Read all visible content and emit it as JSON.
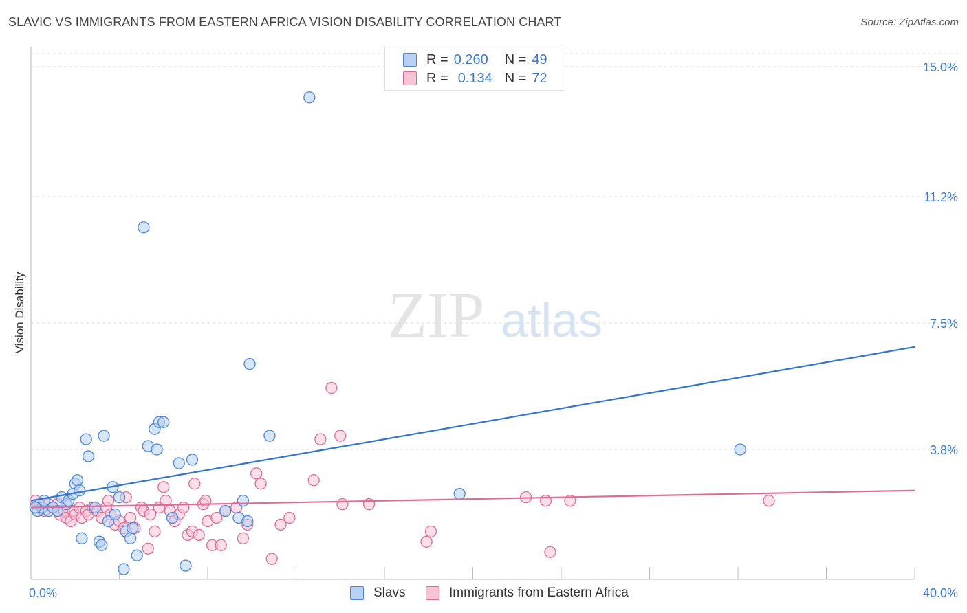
{
  "title": "SLAVIC VS IMMIGRANTS FROM EASTERN AFRICA VISION DISABILITY CORRELATION CHART",
  "source": "Source: ZipAtlas.com",
  "watermark": {
    "zip": "ZIP",
    "atlas": "atlas"
  },
  "legend": {
    "r_label": "R =",
    "n_label": "N =",
    "slavs": {
      "r": "0.260",
      "n": "49"
    },
    "eastern_africa": {
      "r": "0.134",
      "n": "72"
    }
  },
  "colors": {
    "slavs": "#4a86d8",
    "slavs_fill": "#b7d0f4",
    "eastern_africa": "#e06a96",
    "eastern_africa_fill": "#f7c4d6"
  },
  "chart_data": {
    "type": "scatter",
    "title": "SLAVIC VS IMMIGRANTS FROM EASTERN AFRICA VISION DISABILITY CORRELATION CHART",
    "ylabel": "Vision Disability",
    "xlabel": "",
    "xlim": [
      0,
      40
    ],
    "ylim": [
      0,
      15.5
    ],
    "x_tick_labels": [
      "0.0%",
      "40.0%"
    ],
    "y_ticks": [
      3.8,
      7.5,
      11.2,
      15.0
    ],
    "y_tick_labels": [
      "3.8%",
      "7.5%",
      "11.2%",
      "15.0%"
    ],
    "grid": true,
    "legend_position": "top-center",
    "series": [
      {
        "name": "Slavs",
        "trend": [
          [
            0,
            2.3
          ],
          [
            40,
            6.8
          ]
        ],
        "points": [
          [
            0.3,
            2.0
          ],
          [
            0.5,
            2.1
          ],
          [
            0.6,
            2.3
          ],
          [
            0.8,
            2.0
          ],
          [
            1.0,
            2.1
          ],
          [
            1.2,
            2.0
          ],
          [
            1.4,
            2.4
          ],
          [
            1.6,
            2.2
          ],
          [
            1.7,
            2.3
          ],
          [
            1.9,
            2.5
          ],
          [
            2.0,
            2.8
          ],
          [
            2.1,
            2.9
          ],
          [
            2.2,
            2.6
          ],
          [
            2.3,
            1.2
          ],
          [
            2.5,
            4.1
          ],
          [
            2.6,
            3.6
          ],
          [
            2.9,
            2.1
          ],
          [
            3.1,
            1.1
          ],
          [
            3.2,
            1.0
          ],
          [
            3.3,
            4.2
          ],
          [
            3.5,
            1.7
          ],
          [
            3.7,
            2.7
          ],
          [
            3.8,
            1.9
          ],
          [
            4.0,
            2.4
          ],
          [
            4.2,
            0.3
          ],
          [
            4.3,
            1.4
          ],
          [
            4.5,
            1.2
          ],
          [
            4.6,
            1.5
          ],
          [
            4.8,
            0.7
          ],
          [
            5.1,
            10.3
          ],
          [
            5.3,
            3.9
          ],
          [
            5.6,
            4.4
          ],
          [
            5.7,
            3.8
          ],
          [
            5.8,
            4.6
          ],
          [
            6.0,
            4.6
          ],
          [
            6.4,
            1.8
          ],
          [
            6.7,
            3.4
          ],
          [
            7.0,
            0.4
          ],
          [
            7.3,
            3.5
          ],
          [
            8.8,
            2.0
          ],
          [
            9.4,
            1.8
          ],
          [
            9.6,
            2.3
          ],
          [
            9.8,
            1.7
          ],
          [
            9.9,
            6.3
          ],
          [
            10.8,
            4.2
          ],
          [
            12.6,
            14.1
          ],
          [
            19.4,
            2.5
          ],
          [
            32.1,
            3.8
          ],
          [
            0.2,
            2.1
          ]
        ]
      },
      {
        "name": "Immigrants from Eastern Africa",
        "trend": [
          [
            0,
            2.1
          ],
          [
            40,
            2.6
          ]
        ],
        "points": [
          [
            0.2,
            2.3
          ],
          [
            0.4,
            2.2
          ],
          [
            0.6,
            2.0
          ],
          [
            0.8,
            2.2
          ],
          [
            1.0,
            2.1
          ],
          [
            1.2,
            2.2
          ],
          [
            1.3,
            1.9
          ],
          [
            1.5,
            2.0
          ],
          [
            1.6,
            1.8
          ],
          [
            1.8,
            1.7
          ],
          [
            1.9,
            2.0
          ],
          [
            2.0,
            1.9
          ],
          [
            2.2,
            2.1
          ],
          [
            2.3,
            1.8
          ],
          [
            2.5,
            2.0
          ],
          [
            2.6,
            1.9
          ],
          [
            2.8,
            2.1
          ],
          [
            3.0,
            2.0
          ],
          [
            3.2,
            1.8
          ],
          [
            3.4,
            2.1
          ],
          [
            3.5,
            2.3
          ],
          [
            3.6,
            1.9
          ],
          [
            3.8,
            1.6
          ],
          [
            4.0,
            1.7
          ],
          [
            4.2,
            1.5
          ],
          [
            4.3,
            2.4
          ],
          [
            4.5,
            1.8
          ],
          [
            4.7,
            1.5
          ],
          [
            5.0,
            2.1
          ],
          [
            5.1,
            2.0
          ],
          [
            5.3,
            0.9
          ],
          [
            5.4,
            1.9
          ],
          [
            5.6,
            1.4
          ],
          [
            5.8,
            2.1
          ],
          [
            6.0,
            2.7
          ],
          [
            6.1,
            2.3
          ],
          [
            6.3,
            2.0
          ],
          [
            6.5,
            1.7
          ],
          [
            6.7,
            1.9
          ],
          [
            6.9,
            2.1
          ],
          [
            7.1,
            1.3
          ],
          [
            7.3,
            1.4
          ],
          [
            7.4,
            2.8
          ],
          [
            7.6,
            1.3
          ],
          [
            7.8,
            2.2
          ],
          [
            7.9,
            2.3
          ],
          [
            8.0,
            1.7
          ],
          [
            8.2,
            1.0
          ],
          [
            8.4,
            1.8
          ],
          [
            8.6,
            1.0
          ],
          [
            8.8,
            2.0
          ],
          [
            9.3,
            2.1
          ],
          [
            9.6,
            1.2
          ],
          [
            9.8,
            1.6
          ],
          [
            10.2,
            3.1
          ],
          [
            10.4,
            2.8
          ],
          [
            10.9,
            0.6
          ],
          [
            11.3,
            1.6
          ],
          [
            11.7,
            1.8
          ],
          [
            12.8,
            2.9
          ],
          [
            13.1,
            4.1
          ],
          [
            13.6,
            5.6
          ],
          [
            14.0,
            4.2
          ],
          [
            14.1,
            2.2
          ],
          [
            15.3,
            2.2
          ],
          [
            17.9,
            1.1
          ],
          [
            18.1,
            1.4
          ],
          [
            22.4,
            2.4
          ],
          [
            23.3,
            2.3
          ],
          [
            23.5,
            0.8
          ],
          [
            24.4,
            2.3
          ],
          [
            33.4,
            2.3
          ]
        ]
      }
    ]
  }
}
